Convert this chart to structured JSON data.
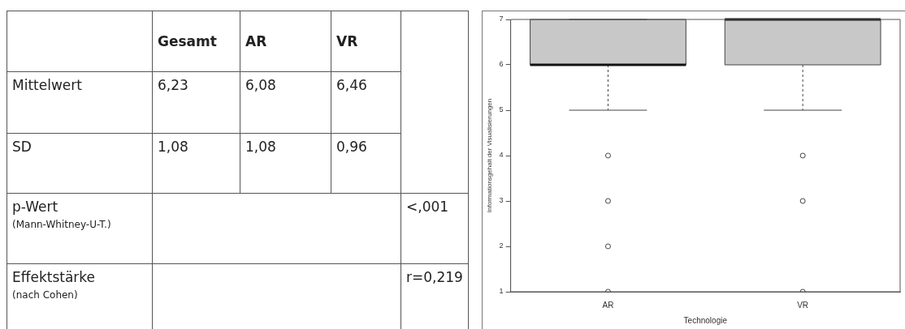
{
  "chart_data": [
    {
      "type": "other",
      "annotations": [
        "Gesamt",
        "AR",
        "VR",
        "Mittelwert",
        "6,23",
        "6,08",
        "6,46",
        "SD",
        "1,08",
        "1,08",
        "0,96",
        "p-Wert",
        "(Mann-Whitney-U-T.)",
        "<,001",
        "Effektstärke",
        "(nach Cohen)",
        "r=0,219"
      ]
    },
    {
      "type": "box",
      "categories": [
        "AR",
        "VR"
      ],
      "xlabel": "Technologie",
      "ylabel": "Informationsgehalt der Visualisierungen",
      "ylim": [
        1,
        7
      ],
      "yticks": [
        1,
        2,
        3,
        4,
        5,
        6,
        7
      ],
      "grid": false,
      "color": "#c8c8c8",
      "boxes": [
        {
          "low": 5,
          "q1": 6,
          "median": 6,
          "q3": 7,
          "high": 7,
          "outliers": [
            4,
            3,
            2,
            1
          ]
        },
        {
          "low": 5,
          "q1": 6,
          "median": 7,
          "q3": 7,
          "high": 7,
          "outliers": [
            4,
            3,
            1
          ]
        }
      ]
    }
  ]
}
